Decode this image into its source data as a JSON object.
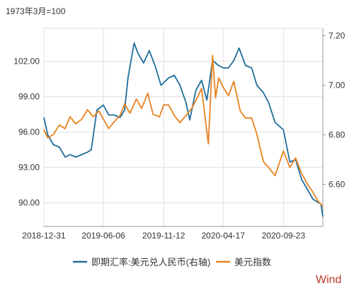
{
  "chart_data": {
    "type": "line",
    "left_axis_note": "1973年3月=100",
    "x_tick_labels": [
      "2018-12-31",
      "2019-06-06",
      "2019-11-12",
      "2020-04-17",
      "2020-09-23"
    ],
    "left_axis": {
      "ticks": [
        "90.00",
        "93.00",
        "96.00",
        "99.00",
        "102.00"
      ],
      "range": [
        88.0,
        104.8
      ]
    },
    "right_axis": {
      "ticks": [
        "6.60",
        "6.80",
        "7.00",
        "7.20"
      ],
      "range": [
        6.43,
        7.23
      ]
    },
    "grid": true,
    "legend_position": "bottom",
    "series": [
      {
        "name": "即期汇率:美元兑人民币(右轴)",
        "axis": "right",
        "color": "#1f6e9c",
        "points": [
          [
            "2018-12-31",
            6.87
          ],
          [
            "2019-01-10",
            6.8
          ],
          [
            "2019-01-25",
            6.76
          ],
          [
            "2019-02-10",
            6.75
          ],
          [
            "2019-02-25",
            6.71
          ],
          [
            "2019-03-10",
            6.72
          ],
          [
            "2019-03-25",
            6.71
          ],
          [
            "2019-04-10",
            6.72
          ],
          [
            "2019-04-25",
            6.73
          ],
          [
            "2019-05-05",
            6.74
          ],
          [
            "2019-05-20",
            6.9
          ],
          [
            "2019-06-06",
            6.92
          ],
          [
            "2019-06-20",
            6.88
          ],
          [
            "2019-07-05",
            6.88
          ],
          [
            "2019-07-20",
            6.87
          ],
          [
            "2019-08-01",
            6.9
          ],
          [
            "2019-08-10",
            7.03
          ],
          [
            "2019-08-26",
            7.17
          ],
          [
            "2019-09-05",
            7.13
          ],
          [
            "2019-09-20",
            7.09
          ],
          [
            "2019-10-05",
            7.14
          ],
          [
            "2019-10-20",
            7.08
          ],
          [
            "2019-11-05",
            7.0
          ],
          [
            "2019-11-12",
            7.01
          ],
          [
            "2019-11-25",
            7.03
          ],
          [
            "2019-12-10",
            7.04
          ],
          [
            "2019-12-25",
            7.0
          ],
          [
            "2020-01-10",
            6.93
          ],
          [
            "2020-01-20",
            6.86
          ],
          [
            "2020-02-05",
            6.98
          ],
          [
            "2020-02-20",
            7.02
          ],
          [
            "2020-03-05",
            6.94
          ],
          [
            "2020-03-20",
            7.1
          ],
          [
            "2020-04-05",
            7.08
          ],
          [
            "2020-04-17",
            7.07
          ],
          [
            "2020-05-01",
            7.07
          ],
          [
            "2020-05-15",
            7.1
          ],
          [
            "2020-05-29",
            7.15
          ],
          [
            "2020-06-15",
            7.08
          ],
          [
            "2020-07-01",
            7.07
          ],
          [
            "2020-07-15",
            7.0
          ],
          [
            "2020-08-01",
            6.97
          ],
          [
            "2020-08-15",
            6.93
          ],
          [
            "2020-09-01",
            6.85
          ],
          [
            "2020-09-23",
            6.82
          ],
          [
            "2020-10-10",
            6.69
          ],
          [
            "2020-10-25",
            6.7
          ],
          [
            "2020-11-10",
            6.62
          ],
          [
            "2020-11-25",
            6.58
          ],
          [
            "2020-12-10",
            6.54
          ],
          [
            "2020-12-31",
            6.52
          ],
          [
            "2021-01-05",
            6.47
          ]
        ]
      },
      {
        "name": "美元指数",
        "axis": "left",
        "color": "#e8821e",
        "points": [
          [
            "2018-12-31",
            96.2
          ],
          [
            "2019-01-10",
            95.5
          ],
          [
            "2019-01-25",
            95.8
          ],
          [
            "2019-02-10",
            96.6
          ],
          [
            "2019-02-25",
            96.3
          ],
          [
            "2019-03-10",
            97.3
          ],
          [
            "2019-03-25",
            96.7
          ],
          [
            "2019-04-10",
            97.1
          ],
          [
            "2019-04-25",
            97.9
          ],
          [
            "2019-05-10",
            97.3
          ],
          [
            "2019-05-25",
            97.8
          ],
          [
            "2019-06-06",
            97.1
          ],
          [
            "2019-06-20",
            96.3
          ],
          [
            "2019-07-05",
            96.9
          ],
          [
            "2019-07-20",
            97.4
          ],
          [
            "2019-08-01",
            98.4
          ],
          [
            "2019-08-15",
            97.6
          ],
          [
            "2019-09-01",
            98.8
          ],
          [
            "2019-09-15",
            98.0
          ],
          [
            "2019-10-01",
            99.3
          ],
          [
            "2019-10-15",
            97.5
          ],
          [
            "2019-11-01",
            97.3
          ],
          [
            "2019-11-12",
            98.3
          ],
          [
            "2019-11-25",
            98.3
          ],
          [
            "2019-12-10",
            97.4
          ],
          [
            "2019-12-25",
            96.8
          ],
          [
            "2020-01-10",
            97.4
          ],
          [
            "2020-01-25",
            98.0
          ],
          [
            "2020-02-10",
            99.0
          ],
          [
            "2020-02-20",
            99.7
          ],
          [
            "2020-03-05",
            96.0
          ],
          [
            "2020-03-09",
            95.0
          ],
          [
            "2020-03-20",
            102.5
          ],
          [
            "2020-03-28",
            98.9
          ],
          [
            "2020-04-05",
            100.6
          ],
          [
            "2020-04-17",
            99.8
          ],
          [
            "2020-05-01",
            99.1
          ],
          [
            "2020-05-15",
            100.3
          ],
          [
            "2020-06-01",
            97.8
          ],
          [
            "2020-06-15",
            97.2
          ],
          [
            "2020-07-01",
            97.2
          ],
          [
            "2020-07-15",
            95.8
          ],
          [
            "2020-08-01",
            93.5
          ],
          [
            "2020-08-15",
            93.0
          ],
          [
            "2020-09-01",
            92.3
          ],
          [
            "2020-09-23",
            94.4
          ],
          [
            "2020-10-10",
            93.0
          ],
          [
            "2020-10-25",
            93.8
          ],
          [
            "2020-11-10",
            92.5
          ],
          [
            "2020-11-25",
            91.6
          ],
          [
            "2020-12-10",
            90.9
          ],
          [
            "2020-12-22",
            90.2
          ],
          [
            "2021-01-05",
            89.7
          ]
        ]
      }
    ]
  },
  "source_label": "Wind"
}
